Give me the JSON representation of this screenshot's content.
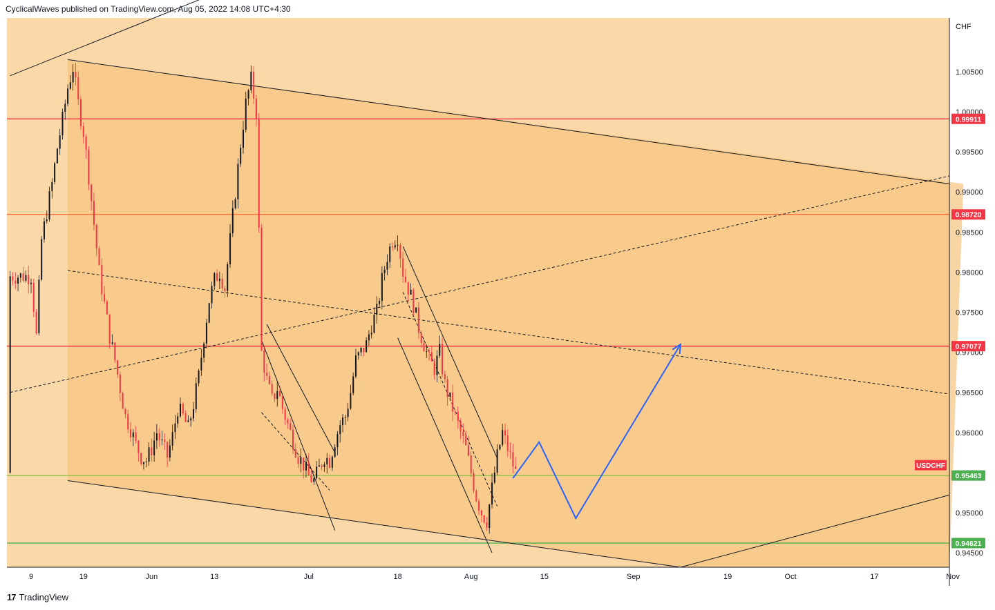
{
  "header": {
    "published": "CyclicalWaves published on TradingView.com, Aug 05, 2022 14:08 UTC+4:30"
  },
  "footer": {
    "brand": "TradingView",
    "logo": "tv-logo-icon"
  },
  "chart_data": {
    "type": "candlestick",
    "symbol": "USDCHF",
    "currency": "CHF",
    "ylim": [
      0.9432,
      1.0117
    ],
    "y_ticks": [
      "1.00500",
      "1.00000",
      "0.99500",
      "0.99000",
      "0.98500",
      "0.98000",
      "0.97500",
      "0.97000",
      "0.96500",
      "0.96000",
      "0.95500",
      "0.95000",
      "0.94500"
    ],
    "x_ticks": [
      {
        "label": "9",
        "d": 0
      },
      {
        "label": "19",
        "d": 10
      },
      {
        "label": "Jun",
        "d": 23
      },
      {
        "label": "13",
        "d": 35
      },
      {
        "label": "Jul",
        "d": 53
      },
      {
        "label": "18",
        "d": 70
      },
      {
        "label": "Aug",
        "d": 84
      },
      {
        "label": "15",
        "d": 98
      },
      {
        "label": "Sep",
        "d": 115
      },
      {
        "label": "19",
        "d": 133
      },
      {
        "label": "Oct",
        "d": 145
      },
      {
        "label": "17",
        "d": 161
      },
      {
        "label": "Nov",
        "d": 176
      }
    ],
    "price_labels": [
      {
        "text": "0.99911",
        "value": 0.99911,
        "color": "#f23645"
      },
      {
        "text": "0.98720",
        "value": 0.9872,
        "color": "#f23645"
      },
      {
        "text": "0.97077",
        "value": 0.97077,
        "color": "#f23645"
      },
      {
        "text": "0.95463",
        "value": 0.95463,
        "color": "#4caf50"
      },
      {
        "text": "0.94621",
        "value": 0.94621,
        "color": "#4caf50"
      }
    ],
    "symbol_label": {
      "text": "USDCHF",
      "color": "#f23645"
    },
    "horizontal_levels": [
      {
        "value": 0.99911,
        "color": "#f23645"
      },
      {
        "value": 0.9872,
        "color": "#ff6d3a"
      },
      {
        "value": 0.97077,
        "color": "#f23645"
      },
      {
        "value": 0.95463,
        "color": "#8bc34a"
      },
      {
        "value": 0.94621,
        "color": "#4caf50"
      }
    ],
    "trend_lines": [
      {
        "p1": [
          -4,
          1.0045
        ],
        "p2": [
          33,
          1.0142
        ],
        "dash": false
      },
      {
        "p1": [
          7,
          1.0065
        ],
        "p2": [
          178,
          0.991
        ],
        "dash": false
      },
      {
        "p1": [
          7,
          0.954
        ],
        "p2": [
          124,
          0.9432
        ],
        "dash": false
      },
      {
        "p1": [
          124,
          0.9432
        ],
        "p2": [
          178,
          0.9522
        ],
        "dash": false
      },
      {
        "p1": [
          -4,
          0.965
        ],
        "p2": [
          176,
          0.992
        ],
        "dash": true
      },
      {
        "p1": [
          7,
          0.9802
        ],
        "p2": [
          176,
          0.9648
        ],
        "dash": true
      },
      {
        "p1": [
          45,
          0.9735
        ],
        "p2": [
          58,
          0.9575
        ],
        "dash": false
      },
      {
        "p1": [
          44,
          0.9625
        ],
        "p2": [
          57,
          0.9528
        ],
        "dash": true
      },
      {
        "p1": [
          44,
          0.9715
        ],
        "p2": [
          58,
          0.9478
        ],
        "dash": false
      },
      {
        "p1": [
          71,
          0.9832
        ],
        "p2": [
          89,
          0.9568
        ],
        "dash": false
      },
      {
        "p1": [
          71,
          0.9775
        ],
        "p2": [
          89,
          0.9508
        ],
        "dash": true
      },
      {
        "p1": [
          70,
          0.9718
        ],
        "p2": [
          88,
          0.945
        ],
        "dash": false
      }
    ],
    "projection": {
      "color": "#2962ff",
      "points": [
        [
          92,
          0.9543
        ],
        [
          97,
          0.9588
        ],
        [
          104,
          0.9493
        ],
        [
          124,
          0.971
        ]
      ]
    },
    "series": {
      "name": "USDCHF",
      "up_color": "#131722",
      "down_color": "#f23645",
      "path": [
        [
          0,
          0.9795
        ],
        [
          1,
          0.972
        ],
        [
          2,
          0.984
        ],
        [
          3,
          0.9875
        ],
        [
          4,
          0.991
        ],
        [
          5,
          0.9955
        ],
        [
          6,
          0.999
        ],
        [
          7,
          1.003
        ],
        [
          8,
          1.0055
        ],
        [
          9,
          1.001
        ],
        [
          10,
          0.9975
        ],
        [
          11,
          0.992
        ],
        [
          12,
          0.986
        ],
        [
          13,
          0.98
        ],
        [
          14,
          0.976
        ],
        [
          15,
          0.972
        ],
        [
          16,
          0.969
        ],
        [
          17,
          0.9655
        ],
        [
          18,
          0.962
        ],
        [
          19,
          0.9605
        ],
        [
          20,
          0.9585
        ],
        [
          21,
          0.957
        ],
        [
          22,
          0.9565
        ],
        [
          23,
          0.958
        ],
        [
          24,
          0.96
        ],
        [
          25,
          0.9585
        ],
        [
          26,
          0.957
        ],
        [
          27,
          0.9595
        ],
        [
          28,
          0.963
        ],
        [
          29,
          0.962
        ],
        [
          30,
          0.9605
        ],
        [
          31,
          0.9635
        ],
        [
          32,
          0.967
        ],
        [
          33,
          0.972
        ],
        [
          34,
          0.9765
        ],
        [
          35,
          0.979
        ],
        [
          36,
          0.98
        ],
        [
          37,
          0.978
        ],
        [
          38,
          0.984
        ],
        [
          39,
          0.99
        ],
        [
          40,
          0.996
        ],
        [
          41,
          1.001
        ],
        [
          42,
          1.004
        ],
        [
          43,
          1.0
        ],
        [
          44,
          0.97
        ],
        [
          45,
          0.9665
        ],
        [
          46,
          0.964
        ],
        [
          47,
          0.9655
        ],
        [
          48,
          0.963
        ],
        [
          49,
          0.961
        ],
        [
          50,
          0.959
        ],
        [
          51,
          0.957
        ],
        [
          52,
          0.956
        ],
        [
          53,
          0.9545
        ],
        [
          54,
          0.954
        ],
        [
          55,
          0.9555
        ],
        [
          56,
          0.957
        ],
        [
          57,
          0.9565
        ],
        [
          58,
          0.959
        ],
        [
          59,
          0.961
        ],
        [
          60,
          0.962
        ],
        [
          61,
          0.965
        ],
        [
          62,
          0.969
        ],
        [
          63,
          0.97
        ],
        [
          64,
          0.971
        ],
        [
          65,
          0.9735
        ],
        [
          66,
          0.975
        ],
        [
          67,
          0.979
        ],
        [
          68,
          0.982
        ],
        [
          69,
          0.984
        ],
        [
          70,
          0.9845
        ],
        [
          71,
          0.98
        ],
        [
          72,
          0.978
        ],
        [
          73,
          0.976
        ],
        [
          74,
          0.973
        ],
        [
          75,
          0.971
        ],
        [
          76,
          0.969
        ],
        [
          77,
          0.968
        ],
        [
          78,
          0.97
        ],
        [
          79,
          0.966
        ],
        [
          80,
          0.964
        ],
        [
          81,
          0.962
        ],
        [
          82,
          0.96
        ],
        [
          83,
          0.958
        ],
        [
          84,
          0.955
        ],
        [
          85,
          0.952
        ],
        [
          86,
          0.95
        ],
        [
          87,
          0.949
        ],
        [
          88,
          0.953
        ],
        [
          89,
          0.957
        ],
        [
          90,
          0.96
        ],
        [
          91,
          0.958
        ],
        [
          92,
          0.956
        ],
        [
          92.5,
          0.955
        ]
      ]
    }
  }
}
